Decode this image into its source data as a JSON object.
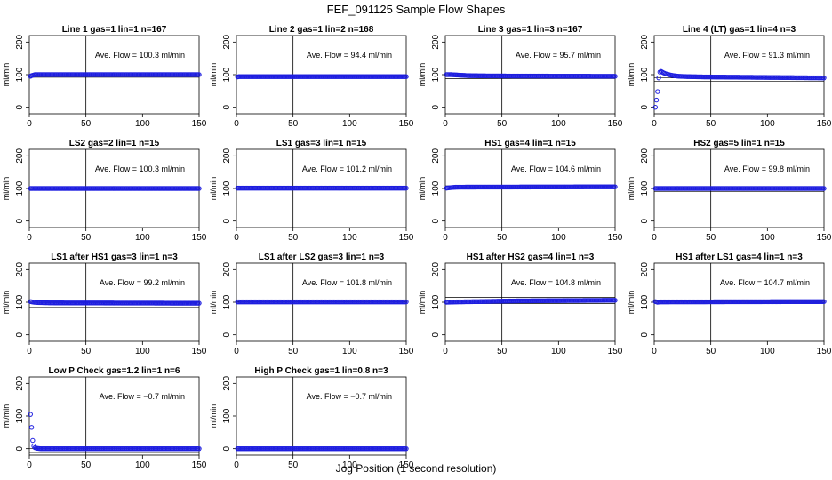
{
  "figure": {
    "title": "FEF_091125  Sample Flow Shapes",
    "xlabel": "Jog Position (1 second resolution)"
  },
  "chart_data": [
    {
      "type": "scatter",
      "title": "Line 1 gas=1 lin=1 n=167",
      "ylabel": "ml/min",
      "annotation": "Ave. Flow = 100.3  ml/min",
      "xlim": [
        0,
        150
      ],
      "ylim": [
        -20,
        220
      ],
      "xticks": [
        "0",
        "50",
        "100",
        "150"
      ],
      "yticks": [
        "0",
        "100",
        "200"
      ],
      "ref_y": [
        92,
        100
      ],
      "vline_x": 50,
      "series": [
        {
          "name": "",
          "points": [
            [
              1,
              95
            ],
            [
              2,
              97
            ],
            [
              3,
              98
            ],
            [
              4,
              99
            ],
            [
              5,
              100
            ],
            [
              6,
              100
            ],
            [
              8,
              100
            ],
            [
              150,
              100
            ]
          ]
        }
      ]
    },
    {
      "type": "scatter",
      "title": "Line 2 gas=1 lin=2 n=168",
      "ylabel": "ml/min",
      "annotation": "Ave. Flow = 94.4  ml/min",
      "xlim": [
        0,
        150
      ],
      "ylim": [
        -20,
        220
      ],
      "xticks": [
        "0",
        "50",
        "100",
        "150"
      ],
      "yticks": [
        "0",
        "100",
        "200"
      ],
      "ref_y": [
        94,
        98
      ],
      "vline_x": 50,
      "series": [
        {
          "name": "",
          "points": [
            [
              1,
              93
            ],
            [
              2,
              94
            ],
            [
              4,
              94
            ],
            [
              150,
              94
            ]
          ]
        }
      ]
    },
    {
      "type": "scatter",
      "title": "Line 3 gas=1 lin=3 n=167",
      "ylabel": "ml/min",
      "annotation": "Ave. Flow = 95.7  ml/min",
      "xlim": [
        0,
        150
      ],
      "ylim": [
        -20,
        220
      ],
      "xticks": [
        "0",
        "50",
        "100",
        "150"
      ],
      "yticks": [
        "0",
        "100",
        "200"
      ],
      "ref_y": [
        88,
        100
      ],
      "vline_x": 50,
      "series": [
        {
          "name": "",
          "points": [
            [
              1,
              100
            ],
            [
              5,
              100
            ],
            [
              10,
              99
            ],
            [
              20,
              97
            ],
            [
              40,
              96
            ],
            [
              150,
              95
            ]
          ]
        }
      ]
    },
    {
      "type": "scatter",
      "title": "Line 4 (LT) gas=1 lin=4 n=3",
      "ylabel": "ml/min",
      "annotation": "Ave. Flow = 91.3  ml/min",
      "xlim": [
        0,
        150
      ],
      "ylim": [
        -20,
        220
      ],
      "xticks": [
        "0",
        "50",
        "100",
        "150"
      ],
      "yticks": [
        "0",
        "100",
        "200"
      ],
      "ref_y": [
        80,
        90
      ],
      "vline_x": 50,
      "series": [
        {
          "name": "",
          "points": [
            [
              1,
              0
            ],
            [
              2,
              22
            ],
            [
              3,
              48
            ],
            [
              4,
              90
            ],
            [
              5,
              108
            ],
            [
              6,
              110
            ],
            [
              7,
              108
            ],
            [
              8,
              106
            ],
            [
              10,
              103
            ],
            [
              13,
              100
            ],
            [
              17,
              97
            ],
            [
              22,
              95
            ],
            [
              30,
              94
            ],
            [
              45,
              93
            ],
            [
              150,
              90
            ]
          ]
        }
      ]
    },
    {
      "type": "scatter",
      "title": "LS2 gas=2 lin=1 n=15",
      "ylabel": "ml/min",
      "annotation": "Ave. Flow = 100.3  ml/min",
      "xlim": [
        0,
        150
      ],
      "ylim": [
        -20,
        220
      ],
      "xticks": [
        "0",
        "50",
        "100",
        "150"
      ],
      "yticks": [
        "0",
        "100",
        "200"
      ],
      "ref_y": [
        96,
        100
      ],
      "vline_x": 50,
      "series": [
        {
          "name": "",
          "points": [
            [
              1,
              100
            ],
            [
              150,
              100
            ]
          ]
        }
      ]
    },
    {
      "type": "scatter",
      "title": "LS1 gas=3 lin=1 n=15",
      "ylabel": "ml/min",
      "annotation": "Ave. Flow = 101.2  ml/min",
      "xlim": [
        0,
        150
      ],
      "ylim": [
        -20,
        220
      ],
      "xticks": [
        "0",
        "50",
        "100",
        "150"
      ],
      "yticks": [
        "0",
        "100",
        "200"
      ],
      "ref_y": [
        100,
        102
      ],
      "vline_x": 50,
      "series": [
        {
          "name": "",
          "points": [
            [
              1,
              101
            ],
            [
              150,
              101
            ]
          ]
        }
      ]
    },
    {
      "type": "scatter",
      "title": "HS1 gas=4 lin=1 n=15",
      "ylabel": "ml/min",
      "annotation": "Ave. Flow = 104.6  ml/min",
      "xlim": [
        0,
        150
      ],
      "ylim": [
        -20,
        220
      ],
      "xticks": [
        "0",
        "50",
        "100",
        "150"
      ],
      "yticks": [
        "0",
        "100",
        "200"
      ],
      "ref_y": [
        101,
        108
      ],
      "vline_x": 50,
      "series": [
        {
          "name": "",
          "points": [
            [
              1,
              101
            ],
            [
              3,
              102
            ],
            [
              6,
              103
            ],
            [
              10,
              104
            ],
            [
              150,
              105
            ]
          ]
        }
      ]
    },
    {
      "type": "scatter",
      "title": "HS2 gas=5 lin=1 n=15",
      "ylabel": "ml/min",
      "annotation": "Ave. Flow = 99.8  ml/min",
      "xlim": [
        0,
        150
      ],
      "ylim": [
        -20,
        220
      ],
      "xticks": [
        "0",
        "50",
        "100",
        "150"
      ],
      "yticks": [
        "0",
        "100",
        "200"
      ],
      "ref_y": [
        90,
        100
      ],
      "vline_x": 50,
      "series": [
        {
          "name": "",
          "points": [
            [
              1,
              100
            ],
            [
              150,
              100
            ]
          ]
        }
      ]
    },
    {
      "type": "scatter",
      "title": "LS1 after HS1 gas=3 lin=1 n=3",
      "ylabel": "ml/min",
      "annotation": "Ave. Flow = 99.2  ml/min",
      "xlim": [
        0,
        150
      ],
      "ylim": [
        -20,
        220
      ],
      "xticks": [
        "0",
        "50",
        "100",
        "150"
      ],
      "yticks": [
        "0",
        "100",
        "200"
      ],
      "ref_y": [
        84,
        100
      ],
      "vline_x": 50,
      "series": [
        {
          "name": "",
          "points": [
            [
              1,
              102
            ],
            [
              4,
              100
            ],
            [
              8,
              99
            ],
            [
              20,
              98
            ],
            [
              150,
              97
            ]
          ]
        }
      ]
    },
    {
      "type": "scatter",
      "title": "LS1 after LS2 gas=3 lin=1 n=3",
      "ylabel": "ml/min",
      "annotation": "Ave. Flow = 101.8  ml/min",
      "xlim": [
        0,
        150
      ],
      "ylim": [
        -20,
        220
      ],
      "xticks": [
        "0",
        "50",
        "100",
        "150"
      ],
      "yticks": [
        "0",
        "100",
        "200"
      ],
      "ref_y": [
        100,
        102
      ],
      "vline_x": 50,
      "series": [
        {
          "name": "",
          "points": [
            [
              1,
              101
            ],
            [
              150,
              101
            ]
          ]
        }
      ]
    },
    {
      "type": "scatter",
      "title": "HS1 after HS2 gas=4 lin=1 n=3",
      "ylabel": "ml/min",
      "annotation": "Ave. Flow = 104.8  ml/min",
      "xlim": [
        0,
        150
      ],
      "ylim": [
        -20,
        220
      ],
      "xticks": [
        "0",
        "50",
        "100",
        "150"
      ],
      "yticks": [
        "0",
        "100",
        "200"
      ],
      "ref_y": [
        96,
        115
      ],
      "vline_x": 50,
      "series": [
        {
          "name": "",
          "points": [
            [
              1,
              100
            ],
            [
              10,
              101
            ],
            [
              30,
              102
            ],
            [
              60,
              104
            ],
            [
              100,
              105
            ],
            [
              150,
              106
            ]
          ]
        }
      ]
    },
    {
      "type": "scatter",
      "title": "HS1 after LS1 gas=4 lin=1 n=3",
      "ylabel": "ml/min",
      "annotation": "Ave. Flow = 104.7  ml/min",
      "xlim": [
        0,
        150
      ],
      "ylim": [
        -20,
        220
      ],
      "xticks": [
        "0",
        "50",
        "100",
        "150"
      ],
      "yticks": [
        "0",
        "100",
        "200"
      ],
      "ref_y": [
        100,
        104
      ],
      "vline_x": 50,
      "series": [
        {
          "name": "",
          "points": [
            [
              1,
              102
            ],
            [
              3,
              100
            ],
            [
              5,
              101
            ],
            [
              150,
              102
            ]
          ]
        }
      ]
    },
    {
      "type": "scatter",
      "title": "Low P Check gas=1.2 lin=1 n=6",
      "ylabel": "ml/min",
      "annotation": "Ave. Flow = −0.7  ml/min",
      "xlim": [
        0,
        150
      ],
      "ylim": [
        -20,
        220
      ],
      "xticks": [
        "0",
        "50",
        "100",
        "150"
      ],
      "yticks": [
        "0",
        "100",
        "200"
      ],
      "ref_y": [
        0,
        -12
      ],
      "vline_x": 50,
      "series": [
        {
          "name": "",
          "points": [
            [
              1,
              105
            ],
            [
              2,
              65
            ],
            [
              3,
              25
            ],
            [
              4,
              8
            ],
            [
              5,
              3
            ],
            [
              7,
              1
            ],
            [
              10,
              0
            ],
            [
              150,
              0
            ]
          ]
        }
      ]
    },
    {
      "type": "scatter",
      "title": "High P Check gas=1 lin=0.8 n=3",
      "ylabel": "ml/min",
      "annotation": "Ave. Flow = −0.7  ml/min",
      "xlim": [
        0,
        150
      ],
      "ylim": [
        -20,
        220
      ],
      "xticks": [
        "0",
        "50",
        "100",
        "150"
      ],
      "yticks": [
        "0",
        "100",
        "200"
      ],
      "ref_y": [
        0,
        -1
      ],
      "vline_x": 50,
      "series": [
        {
          "name": "",
          "points": [
            [
              1,
              0
            ],
            [
              150,
              0
            ]
          ]
        }
      ]
    }
  ]
}
